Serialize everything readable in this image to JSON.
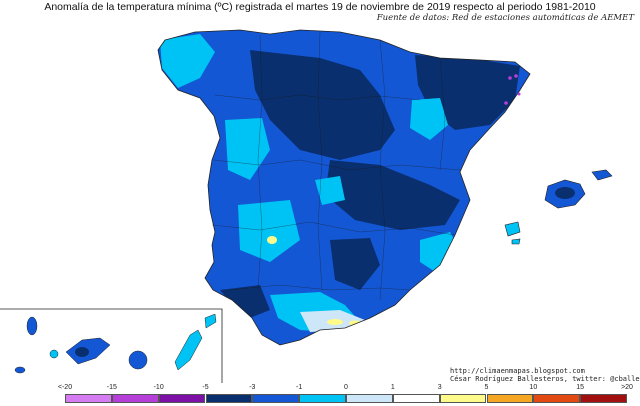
{
  "title": "Anomalía de la temperatura mínima (ºC) registrada el martes 19 de noviembre de 2019 respecto al periodo 1981-2010",
  "source": "Fuente de datos: Red de estaciones automáticas de AEMET",
  "credits": {
    "url": "http://climaenmapas.blogspot.com",
    "author": "César Rodríguez Ballesteros, twitter: @cballesteros"
  },
  "legend": {
    "ticks": [
      "<-20",
      "-15",
      "-10",
      "-5",
      "-3",
      "-1",
      "0",
      "1",
      "3",
      "5",
      "10",
      "15",
      ">20"
    ],
    "colors": [
      "#d67cf2",
      "#b53fd8",
      "#7d10a6",
      "#0a2f6e",
      "#1457d4",
      "#00c3f5",
      "#cde6f8",
      "#ffffff",
      "#fffb8a",
      "#f5a623",
      "#e24a12",
      "#a10f0f",
      "#7a2a00"
    ]
  },
  "colors": {
    "sea": "#ffffff",
    "strong_cold": "#0a2f6e",
    "moderate_cold": "#1457d4",
    "mild_cold": "#00c3f5",
    "slight_cold": "#cde6f8",
    "warm": "#fffb8a",
    "extreme_cold": "#b53fd8"
  }
}
